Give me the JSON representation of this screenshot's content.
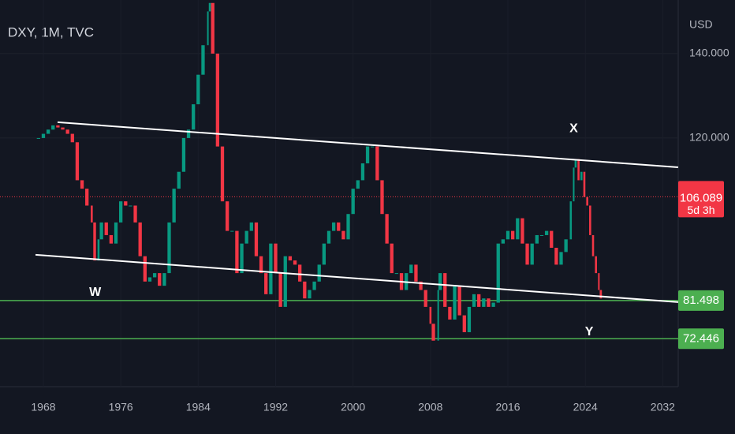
{
  "chart_data": {
    "type": "candlestick",
    "title": "DXY, 1M, TVC",
    "y_axis_label": "USD",
    "x": [
      1967.5,
      1968,
      1968.5,
      1969,
      1969.5,
      1970,
      1970.5,
      1971,
      1971.5,
      1972,
      1972.5,
      1973,
      1973.3,
      1973.7,
      1974,
      1974.5,
      1975,
      1975.5,
      1976,
      1976.5,
      1977,
      1977.5,
      1978,
      1978.5,
      1979,
      1979.5,
      1980,
      1980.5,
      1981,
      1981.5,
      1982,
      1982.5,
      1983,
      1983.5,
      1984,
      1984.5,
      1985,
      1985.2,
      1985.5,
      1986,
      1986.5,
      1987,
      1987.5,
      1988,
      1988.5,
      1989,
      1989.5,
      1990,
      1990.5,
      1991,
      1991.5,
      1992,
      1992.5,
      1993,
      1993.5,
      1994,
      1994.5,
      1995,
      1995.5,
      1996,
      1996.5,
      1997,
      1997.5,
      1998,
      1998.5,
      1999,
      1999.5,
      2000,
      2000.5,
      2001,
      2001.5,
      2002,
      2002.5,
      2003,
      2003.5,
      2004,
      2004.5,
      2005,
      2005.5,
      2006,
      2006.5,
      2007,
      2007.5,
      2008,
      2008.3,
      2008.8,
      2009,
      2009.5,
      2010,
      2010.5,
      2011,
      2011.5,
      2012,
      2012.5,
      2013,
      2013.5,
      2014,
      2014.5,
      2015,
      2015.5,
      2016,
      2016.5,
      2017,
      2017.5,
      2018,
      2018.5,
      2019,
      2019.5,
      2020,
      2020.5,
      2021,
      2021.5,
      2022,
      2022.5,
      2022.8,
      2023,
      2023.3,
      2023.6,
      2023.9,
      2024.2,
      2024.5,
      2024.8,
      2025.1,
      2025.4,
      2025.6
    ],
    "series": [
      {
        "up_color": "#089981",
        "down_color": "#f23645",
        "values": [
          120,
          121,
          122,
          123,
          122.5,
          122,
          121,
          119,
          110,
          108,
          104,
          100,
          91,
          96,
          100,
          97,
          95,
          100,
          105,
          104,
          104,
          100,
          92,
          86,
          87,
          88,
          85,
          88,
          100,
          108,
          112,
          120,
          122,
          128,
          135,
          142,
          150,
          152,
          140,
          118,
          105,
          98,
          98,
          88,
          95,
          98,
          100,
          92,
          88,
          83,
          95,
          88,
          80,
          92,
          91,
          90,
          86,
          82,
          84,
          86,
          90,
          95,
          98,
          100,
          98,
          96,
          102,
          108,
          110,
          114,
          118,
          118,
          110,
          102,
          95,
          88,
          88,
          84,
          88,
          90,
          86,
          84,
          80,
          76,
          72,
          84,
          88,
          80,
          77,
          85,
          78,
          74,
          80,
          83,
          80,
          82,
          80,
          81,
          95,
          96,
          98,
          96,
          101,
          95,
          90,
          95,
          97,
          97,
          98,
          94,
          90,
          93,
          96,
          105,
          113,
          115,
          110,
          112,
          106,
          104,
          97,
          92,
          88,
          84,
          82
        ]
      }
    ],
    "xlim": [
      1963.52,
      2033.6
    ],
    "ylim": [
      61.1,
      152.7
    ],
    "xticks": [
      1968,
      1976,
      1984,
      1992,
      2000,
      2008,
      2016,
      2024,
      2032
    ],
    "yticks": [
      {
        "value": 140,
        "label": "140.000"
      },
      {
        "value": 120,
        "label": "120.000"
      }
    ],
    "grid": true,
    "price_lines": [
      {
        "value": 81.498,
        "color": "#4caf50"
      },
      {
        "value": 72.446,
        "color": "#4caf50"
      }
    ],
    "current_price": {
      "value": 106.089,
      "countdown": "5d 3h",
      "color": "#f23645"
    },
    "trend_lines": [
      {
        "x": [
          1969.47,
          2033.6
        ],
        "y": [
          123.74,
          113.08
        ]
      },
      {
        "x": [
          1967.19,
          2033.6
        ],
        "y": [
          92.34,
          81.12
        ]
      }
    ],
    "annotations": [
      {
        "text": "W",
        "x": 1973.35,
        "y": 83.4
      },
      {
        "text": "X",
        "x": 2022.8,
        "y": 122.2
      },
      {
        "text": "Y",
        "x": 2024.4,
        "y": 74.0
      }
    ]
  }
}
